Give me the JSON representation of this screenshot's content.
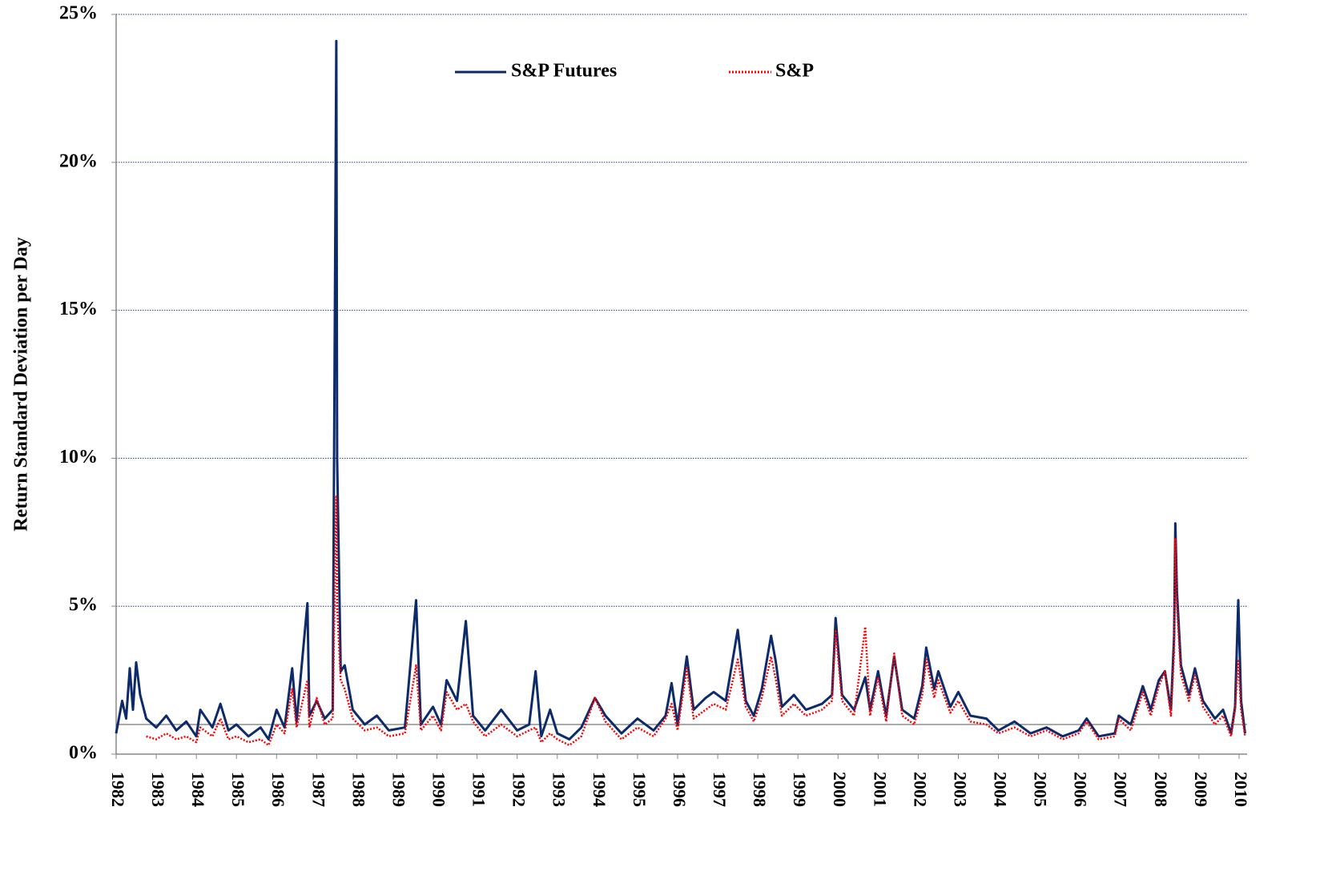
{
  "chart_data": {
    "type": "line",
    "y_label": "Return Standard Deviation per Day",
    "x": [
      1982.0,
      1982.15,
      1982.25,
      1982.34,
      1982.42,
      1982.5,
      1982.6,
      1982.75,
      1983.0,
      1983.25,
      1983.5,
      1983.75,
      1984.0,
      1984.1,
      1984.4,
      1984.6,
      1984.8,
      1985.0,
      1985.3,
      1985.6,
      1985.8,
      1986.0,
      1986.2,
      1986.39,
      1986.5,
      1986.77,
      1986.82,
      1987.0,
      1987.2,
      1987.4,
      1987.49,
      1987.51,
      1987.6,
      1987.7,
      1987.9,
      1988.2,
      1988.5,
      1988.8,
      1989.2,
      1989.48,
      1989.6,
      1989.9,
      1990.1,
      1990.24,
      1990.5,
      1990.72,
      1990.9,
      1991.2,
      1991.6,
      1992.0,
      1992.3,
      1992.46,
      1992.6,
      1992.82,
      1993.0,
      1993.3,
      1993.6,
      1993.94,
      1994.2,
      1994.6,
      1995.0,
      1995.4,
      1995.7,
      1995.85,
      1996.0,
      1996.23,
      1996.4,
      1996.7,
      1996.9,
      1997.2,
      1997.5,
      1997.7,
      1997.9,
      1998.1,
      1998.33,
      1998.45,
      1998.6,
      1998.9,
      1999.2,
      1999.6,
      1999.85,
      1999.94,
      2000.1,
      2000.4,
      2000.68,
      2000.8,
      2001.0,
      2001.2,
      2001.4,
      2001.6,
      2001.9,
      2002.1,
      2002.2,
      2002.4,
      2002.5,
      2002.8,
      2003.0,
      2003.3,
      2003.7,
      2004.0,
      2004.4,
      2004.8,
      2005.2,
      2005.6,
      2006.0,
      2006.2,
      2006.5,
      2006.9,
      2007.0,
      2007.3,
      2007.6,
      2007.8,
      2008.0,
      2008.15,
      2008.3,
      2008.38,
      2008.41,
      2008.45,
      2008.55,
      2008.75,
      2008.9,
      2009.1,
      2009.4,
      2009.6,
      2009.8,
      2009.9,
      2009.98,
      2010.05,
      2010.15
    ],
    "series": [
      {
        "name": "S&P Futures",
        "color": "#0d2a6b",
        "dash": false,
        "values": [
          0.7,
          1.8,
          1.2,
          2.9,
          1.5,
          3.1,
          2.0,
          1.2,
          0.9,
          1.3,
          0.8,
          1.1,
          0.6,
          1.5,
          0.9,
          1.7,
          0.8,
          1.0,
          0.6,
          0.9,
          0.5,
          1.5,
          0.9,
          2.9,
          1.1,
          5.1,
          1.3,
          1.8,
          1.2,
          1.5,
          24.1,
          10,
          2.8,
          3.0,
          1.5,
          1.0,
          1.3,
          0.8,
          0.9,
          5.2,
          1.0,
          1.6,
          1.0,
          2.5,
          1.8,
          4.5,
          1.3,
          0.8,
          1.5,
          0.8,
          1.0,
          2.8,
          0.6,
          1.5,
          0.7,
          0.5,
          0.9,
          1.9,
          1.3,
          0.7,
          1.2,
          0.8,
          1.3,
          2.4,
          1.0,
          3.3,
          1.5,
          1.9,
          2.1,
          1.8,
          4.2,
          1.8,
          1.3,
          2.2,
          4.0,
          3.1,
          1.6,
          2.0,
          1.5,
          1.7,
          2.0,
          4.6,
          2.0,
          1.5,
          2.6,
          1.5,
          2.8,
          1.3,
          3.3,
          1.5,
          1.2,
          2.3,
          3.6,
          2.2,
          2.8,
          1.6,
          2.1,
          1.3,
          1.2,
          0.8,
          1.1,
          0.7,
          0.9,
          0.6,
          0.8,
          1.2,
          0.6,
          0.7,
          1.3,
          1.0,
          2.3,
          1.5,
          2.5,
          2.8,
          1.5,
          4.0,
          7.8,
          5.5,
          3.0,
          2.0,
          2.9,
          1.8,
          1.2,
          1.5,
          0.7,
          1.6,
          5.2,
          1.8,
          0.7
        ]
      },
      {
        "name": "S&P",
        "color": "#ff0000",
        "dash": true,
        "values": [
          null,
          null,
          null,
          null,
          null,
          null,
          null,
          0.6,
          0.5,
          0.7,
          0.5,
          0.6,
          0.4,
          0.9,
          0.6,
          1.2,
          0.5,
          0.6,
          0.4,
          0.5,
          0.3,
          1.0,
          0.7,
          2.2,
          0.9,
          2.5,
          0.9,
          1.9,
          1.0,
          1.2,
          8.7,
          5,
          2.5,
          2.2,
          1.2,
          0.8,
          0.9,
          0.6,
          0.7,
          3.0,
          0.8,
          1.3,
          0.8,
          2.1,
          1.5,
          1.7,
          1.1,
          0.6,
          1.0,
          0.6,
          0.8,
          0.9,
          0.4,
          0.7,
          0.5,
          0.3,
          0.6,
          1.9,
          1.1,
          0.5,
          0.9,
          0.6,
          1.2,
          1.7,
          0.8,
          2.9,
          1.2,
          1.5,
          1.7,
          1.5,
          3.2,
          1.6,
          1.1,
          1.9,
          3.3,
          2.5,
          1.3,
          1.7,
          1.3,
          1.5,
          1.8,
          4.2,
          1.8,
          1.3,
          4.3,
          1.3,
          2.6,
          1.1,
          3.4,
          1.3,
          1.0,
          2.0,
          3.2,
          1.9,
          2.5,
          1.4,
          1.8,
          1.1,
          1.0,
          0.7,
          0.9,
          0.6,
          0.8,
          0.5,
          0.7,
          1.1,
          0.5,
          0.6,
          1.2,
          0.8,
          2.1,
          1.3,
          2.3,
          2.8,
          1.3,
          3.5,
          7.3,
          5.0,
          2.7,
          1.8,
          2.7,
          1.6,
          1.0,
          1.3,
          0.6,
          1.5,
          3.2,
          1.5,
          0.6
        ]
      }
    ],
    "reference_line": 1,
    "xlim": [
      1982,
      2010.2
    ],
    "xticks": [
      1982,
      1983,
      1984,
      1985,
      1986,
      1987,
      1988,
      1989,
      1990,
      1991,
      1992,
      1993,
      1994,
      1995,
      1996,
      1997,
      1998,
      1999,
      2000,
      2001,
      2002,
      2003,
      2004,
      2005,
      2006,
      2007,
      2008,
      2009,
      2010
    ],
    "ylim": [
      0,
      25
    ],
    "yticks": [
      {
        "value": 0,
        "label": "0%"
      },
      {
        "value": 5,
        "label": "5%"
      },
      {
        "value": 10,
        "label": "10%"
      },
      {
        "value": 15,
        "label": "15%"
      },
      {
        "value": 20,
        "label": "20%"
      },
      {
        "value": 25,
        "label": "25%"
      }
    ],
    "grid": true,
    "legend": "top"
  }
}
